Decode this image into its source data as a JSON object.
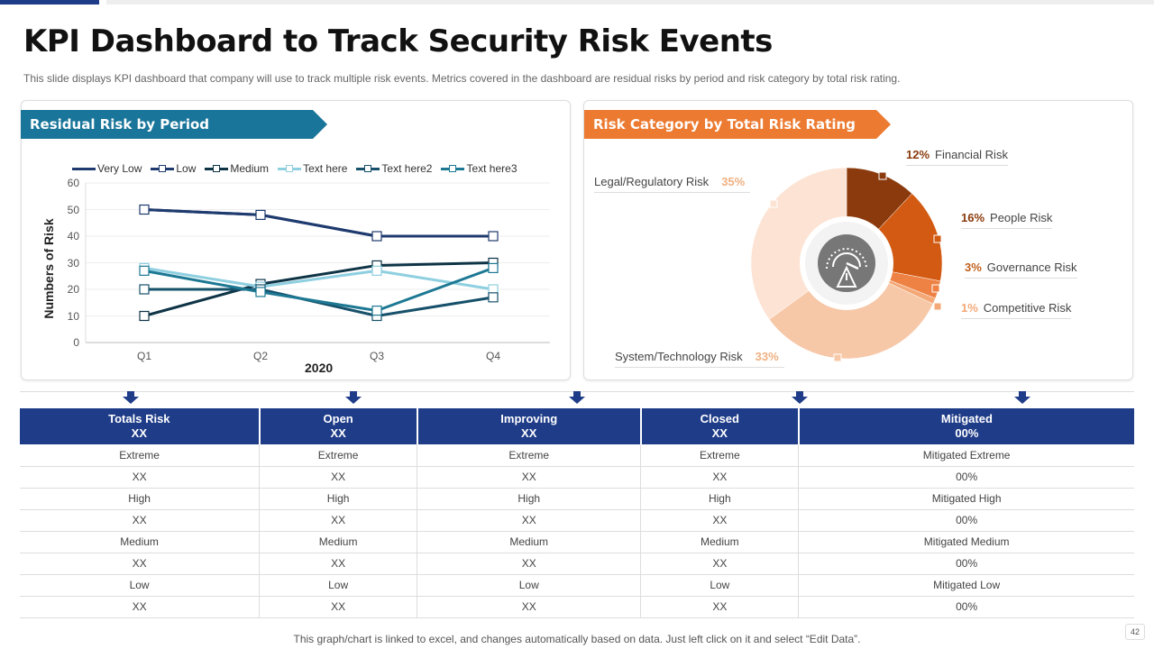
{
  "title": "KPI Dashboard to Track Security Risk Events",
  "subtitle": "This slide displays KPI dashboard  that company will use to track multiple risk events.  Metrics covered  in the dashboard  are residual risks by period  and risk category by total risk rating.",
  "footer": "This graph/chart is linked to excel,  and changes automatically based on data. Just left click on it and select “Edit Data”.",
  "page_number": "42",
  "colors": {
    "blue": "#1F3C88",
    "teal_ribbon": "#19759A",
    "orange_ribbon": "#EC7A30"
  },
  "chart_data": [
    {
      "type": "line",
      "title": "Residual Risk by Period",
      "xlabel": "2020",
      "ylabel": "Numbers of Risk",
      "categories": [
        "Q1",
        "Q2",
        "Q3",
        "Q4"
      ],
      "ylim": [
        0,
        60
      ],
      "yticks": [
        "0",
        "10",
        "20",
        "30",
        "40",
        "50",
        "60"
      ],
      "grid": true,
      "legend": "top",
      "series": [
        {
          "name": "Very Low",
          "values": [
            50,
            48,
            40,
            40
          ],
          "color": "#1E3A6E",
          "markers": false
        },
        {
          "name": "Low",
          "values": [
            50,
            48,
            40,
            40
          ],
          "color": "#1E3A6E",
          "markers": true
        },
        {
          "name": "Medium",
          "values": [
            10,
            22,
            29,
            30
          ],
          "color": "#0E3446",
          "markers": true
        },
        {
          "name": "Text here",
          "values": [
            28,
            21,
            27,
            20
          ],
          "color": "#8ECFE0",
          "markers": true
        },
        {
          "name": "Text here2",
          "values": [
            20,
            20,
            10,
            17
          ],
          "color": "#16506A",
          "markers": true
        },
        {
          "name": "Text here3",
          "values": [
            27,
            19,
            12,
            28
          ],
          "color": "#1D7894",
          "markers": true
        }
      ]
    },
    {
      "type": "pie",
      "title": "Risk Category by Total Risk Rating",
      "icon": "speedometer-warning-icon",
      "slices": [
        {
          "label": "Financial Risk",
          "value": 12,
          "pct": "12%",
          "color": "#8A3A0C"
        },
        {
          "label": "People Risk",
          "value": 16,
          "pct": "16%",
          "color": "#D25A12"
        },
        {
          "label": "Governance  Risk",
          "value": 3,
          "pct": "3%",
          "color": "#EE8244"
        },
        {
          "label": "Competitive  Risk",
          "value": 1,
          "pct": "1%",
          "color": "#F4A878"
        },
        {
          "label": "System/Technology Risk",
          "value": 33,
          "pct": "33%",
          "color": "#F7C8A8"
        },
        {
          "label": "Legal/Regulatory  Risk",
          "value": 35,
          "pct": "35%",
          "color": "#FCE3D3"
        }
      ]
    }
  ],
  "table": {
    "headers": [
      [
        "Totals Risk",
        "XX"
      ],
      [
        "Open",
        "XX"
      ],
      [
        "Improving",
        "XX"
      ],
      [
        "Closed",
        "XX"
      ],
      [
        "Mitigated",
        "00%"
      ]
    ],
    "rows": [
      [
        "Extreme",
        "Extreme",
        "Extreme",
        "Extreme",
        "Mitigated Extreme"
      ],
      [
        "XX",
        "XX",
        "XX",
        "XX",
        "00%"
      ],
      [
        "High",
        "High",
        "High",
        "High",
        "Mitigated High"
      ],
      [
        "XX",
        "XX",
        "XX",
        "XX",
        "00%"
      ],
      [
        "Medium",
        "Medium",
        "Medium",
        "Medium",
        "Mitigated Medium"
      ],
      [
        "XX",
        "XX",
        "XX",
        "XX",
        "00%"
      ],
      [
        "Low",
        "Low",
        "Low",
        "Low",
        "Mitigated Low"
      ],
      [
        "XX",
        "XX",
        "XX",
        "XX",
        "00%"
      ]
    ]
  }
}
